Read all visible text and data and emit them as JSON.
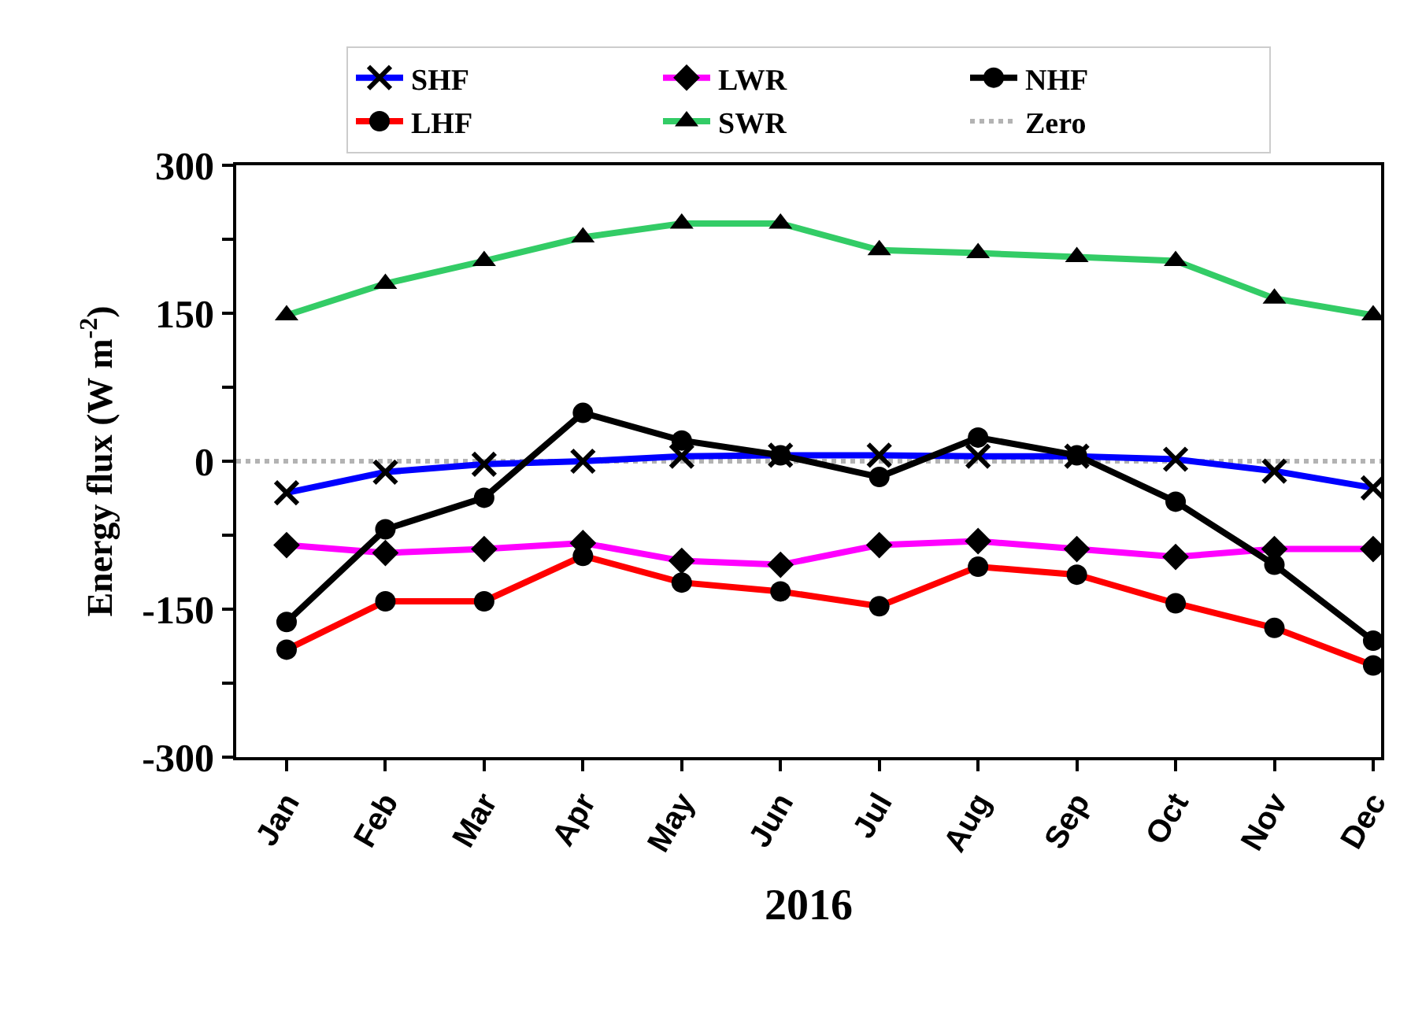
{
  "chart_data": {
    "type": "line",
    "xlabel": "2016",
    "ylabel": "Energy flux (W m$^{-2}$)",
    "categories": [
      "Jan",
      "Feb",
      "Mar",
      "Apr",
      "May",
      "Jun",
      "Jul",
      "Aug",
      "Sep",
      "Oct",
      "Nov",
      "Dec"
    ],
    "series": [
      {
        "name": "SHF",
        "color": "#0000ff",
        "marker": "cross",
        "values": [
          -32,
          -11,
          -3,
          0,
          5,
          6,
          6,
          5,
          5,
          2,
          -10,
          -27
        ]
      },
      {
        "name": "LWR",
        "color": "#ff00ff",
        "marker": "diamond",
        "values": [
          -85,
          -93,
          -89,
          -83,
          -101,
          -105,
          -85,
          -81,
          -89,
          -97,
          -89,
          -89
        ]
      },
      {
        "name": "NHF",
        "color": "#000000",
        "marker": "circle",
        "values": [
          -163,
          -69,
          -37,
          49,
          21,
          6,
          -16,
          24,
          6,
          -41,
          -105,
          -182
        ]
      },
      {
        "name": "LHF",
        "color": "#ff0000",
        "marker": "circle",
        "values": [
          -191,
          -142,
          -142,
          -96,
          -123,
          -132,
          -147,
          -107,
          -115,
          -144,
          -169,
          -207
        ]
      },
      {
        "name": "SWR",
        "color": "#33cc66",
        "marker": "triangle",
        "values": [
          148,
          180,
          203,
          227,
          241,
          241,
          214,
          211,
          207,
          203,
          165,
          148
        ]
      }
    ],
    "ref_lines": [
      {
        "axis": "y",
        "value": 0,
        "label": "Zero",
        "color": "#b3b3b3",
        "line_style": "dotted"
      }
    ],
    "ylim": [
      -300,
      300
    ],
    "yticks": [
      -300,
      {
        "value": -225,
        "label": null
      },
      -150,
      {
        "value": -75,
        "label": null
      },
      0,
      {
        "value": 75,
        "label": null
      },
      150,
      {
        "value": 225,
        "label": null
      },
      300
    ],
    "grid": false,
    "legend": "top",
    "line_style": "solid"
  }
}
